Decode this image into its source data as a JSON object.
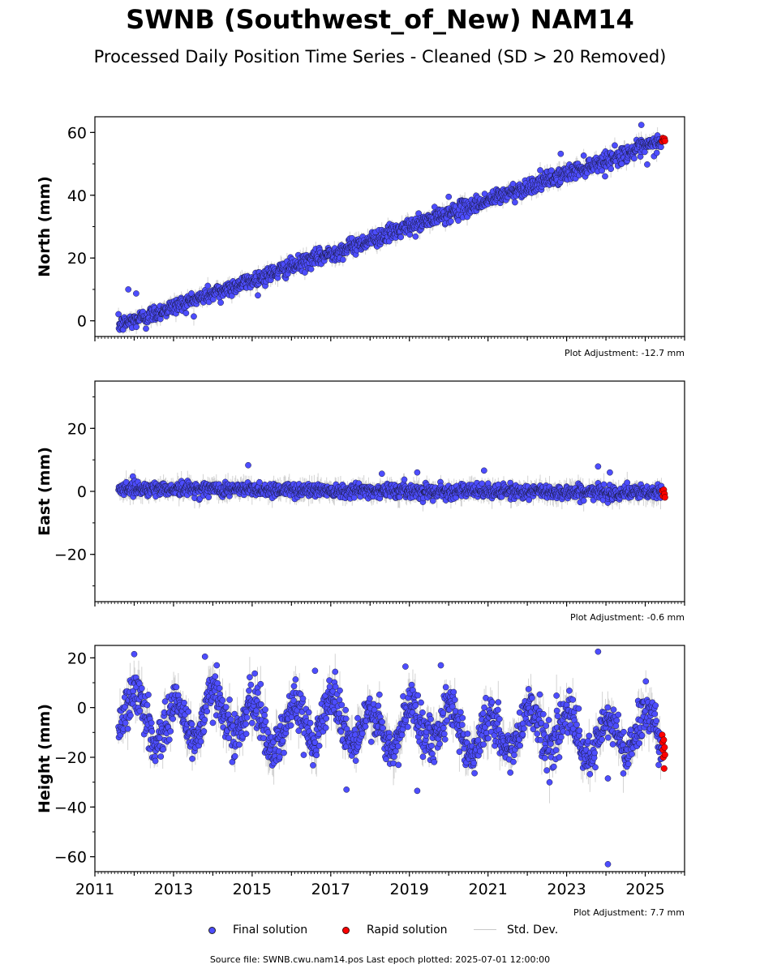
{
  "header": {
    "title": "SWNB (Southwest_of_New) NAM14",
    "subtitle": "Processed Daily Position Time Series - Cleaned (SD > 20 Removed)"
  },
  "legend": {
    "final": "Final solution",
    "rapid": "Rapid solution",
    "std": "Std. Dev."
  },
  "footer": {
    "source": "Source file: SWNB.cwu.nam14.pos  Last epoch plotted: 2025-07-01 12:00:00"
  },
  "colors": {
    "final": "#4d4dff",
    "rapid": "#ff0000",
    "std": "#808080"
  },
  "chart_data": [
    {
      "type": "scatter",
      "ylabel": "North (mm)",
      "adjustment": "Plot Adjustment: -12.7 mm",
      "xlim": [
        2011,
        2026
      ],
      "ylim": [
        -5,
        65
      ],
      "yticks": [
        0,
        20,
        40,
        60
      ],
      "trend": [
        [
          2011.6,
          -1.5
        ],
        [
          2025.5,
          57.5
        ]
      ],
      "noise": 1.3,
      "std_band": 2.0,
      "outliers": [
        [
          2011.85,
          10
        ],
        [
          2012.05,
          8.7
        ],
        [
          2012.3,
          -2.5
        ],
        [
          2014.2,
          5.8
        ],
        [
          2020.0,
          39.5
        ],
        [
          2022.85,
          53.2
        ],
        [
          2024.4,
          50
        ],
        [
          2024.9,
          62.4
        ],
        [
          2025.05,
          49.8
        ]
      ],
      "rapid": [
        [
          2025.43,
          57.2
        ],
        [
          2025.45,
          58.2
        ],
        [
          2025.47,
          57.6
        ],
        [
          2025.49,
          58.0
        ],
        [
          2025.5,
          57.3
        ]
      ]
    },
    {
      "type": "scatter",
      "ylabel": "East (mm)",
      "adjustment": "Plot Adjustment: -0.6 mm",
      "xlim": [
        2011,
        2026
      ],
      "ylim": [
        -35,
        35
      ],
      "yticks": [
        -20,
        0,
        20
      ],
      "trend": [
        [
          2011.6,
          1.0
        ],
        [
          2025.5,
          -0.5
        ]
      ],
      "noise": 1.1,
      "std_band": 2.5,
      "outliers": [
        [
          2014.9,
          8.3
        ],
        [
          2018.3,
          5.6
        ],
        [
          2019.2,
          6.0
        ],
        [
          2020.9,
          6.6
        ],
        [
          2023.8,
          7.9
        ],
        [
          2024.1,
          6.0
        ],
        [
          2019.6,
          -3.0
        ]
      ],
      "rapid": [
        [
          2025.43,
          0.2
        ],
        [
          2025.45,
          -1.5
        ],
        [
          2025.47,
          0.5
        ],
        [
          2025.49,
          -0.8
        ],
        [
          2025.5,
          -1.9
        ]
      ]
    },
    {
      "type": "scatter",
      "ylabel": "Height (mm)",
      "adjustment": "Plot Adjustment: 7.7 mm",
      "xlim": [
        2011,
        2026
      ],
      "ylim": [
        -66,
        25
      ],
      "yticks": [
        -60,
        -40,
        -20,
        0,
        20
      ],
      "trend": [
        [
          2011.6,
          -3
        ],
        [
          2025.5,
          -12
        ]
      ],
      "seasonal": 8,
      "noise": 4.5,
      "std_band": 6,
      "outliers": [
        [
          2012.0,
          21.5
        ],
        [
          2013.8,
          20.5
        ],
        [
          2014.1,
          17
        ],
        [
          2016.6,
          14.8
        ],
        [
          2017.4,
          -33
        ],
        [
          2018.9,
          16.5
        ],
        [
          2019.2,
          -33.5
        ],
        [
          2019.8,
          17
        ],
        [
          2023.8,
          22.5
        ],
        [
          2024.05,
          -28.5
        ],
        [
          2024.05,
          -63
        ]
      ],
      "rapid": [
        [
          2025.43,
          -11
        ],
        [
          2025.44,
          -14
        ],
        [
          2025.45,
          -17
        ],
        [
          2025.46,
          -20
        ],
        [
          2025.47,
          -13
        ],
        [
          2025.48,
          -24.5
        ],
        [
          2025.49,
          -16
        ],
        [
          2025.5,
          -19
        ]
      ]
    }
  ],
  "x_axis": {
    "ticks": [
      2011,
      2013,
      2015,
      2017,
      2019,
      2021,
      2023,
      2025
    ]
  }
}
